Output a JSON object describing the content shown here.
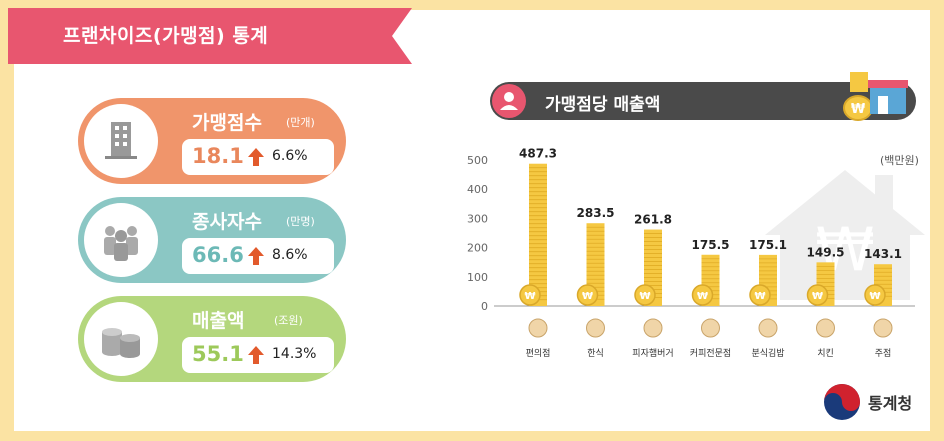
{
  "title": "프랜차이즈(가맹점) 통계",
  "stats": [
    {
      "label": "가맹점수",
      "unit": "(만개)",
      "value": "18.1",
      "change": "6.6%",
      "icon": "building-icon",
      "color": "#f0956b",
      "value_color": "#e9875c"
    },
    {
      "label": "종사자수",
      "unit": "(만명)",
      "value": "66.6",
      "change": "8.6%",
      "icon": "people-icon",
      "color": "#8bc7c4",
      "value_color": "#6cb9b6"
    },
    {
      "label": "매출액",
      "unit": "(조원)",
      "value": "55.1",
      "change": "14.3%",
      "icon": "coins-icon",
      "color": "#b4d77d",
      "value_color": "#9dc95a"
    }
  ],
  "chart_header": "가맹점당 매출액",
  "logo_text": "통계청",
  "chart_data": {
    "type": "bar",
    "title": "가맹점당 매출액",
    "ylabel": "(백만원)",
    "ylim": [
      0,
      500
    ],
    "yticks": [
      "0",
      "100",
      "200",
      "300",
      "400",
      "500"
    ],
    "categories": [
      "편의점",
      "한식",
      "피자햄버거",
      "커피전문점",
      "분식김밥",
      "치킨",
      "주점"
    ],
    "values": [
      487.3,
      283.5,
      261.8,
      175.5,
      175.1,
      149.5,
      143.1
    ],
    "labels": [
      "487.3",
      "283.5",
      "261.8",
      "175.5",
      "175.1",
      "149.5",
      "143.1"
    ],
    "icons": [
      "convenience-store-icon",
      "korean-food-icon",
      "burger-icon",
      "coffee-icon",
      "kimbap-icon",
      "chicken-icon",
      "beer-icon"
    ],
    "bar_color": "#f5c842",
    "grid": false
  }
}
